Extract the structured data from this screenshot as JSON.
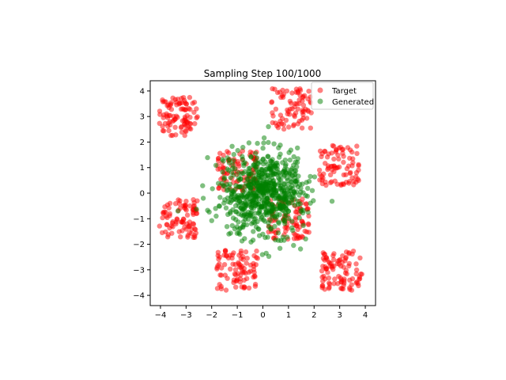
{
  "chart_data": {
    "type": "scatter",
    "title": "Sampling Step 100/1000",
    "xlabel": "",
    "ylabel": "",
    "xlim": [
      -4.4,
      4.4
    ],
    "ylim": [
      -4.4,
      4.4
    ],
    "xticks": [
      -4,
      -3,
      -2,
      -1,
      0,
      1,
      2,
      3,
      4
    ],
    "yticks": [
      -4,
      -3,
      -2,
      -1,
      0,
      1,
      2,
      3,
      4
    ],
    "grid": false,
    "legend": {
      "placement": "upper-right"
    },
    "series": [
      {
        "name": "Target",
        "color": "#ff0000",
        "alpha": 0.5,
        "clusters": [
          {
            "cx": -3.3,
            "cy": 3.0,
            "spread": 0.75,
            "count": 95
          },
          {
            "cx": 1.1,
            "cy": 3.3,
            "spread": 0.8,
            "count": 80
          },
          {
            "cx": 3.0,
            "cy": 1.1,
            "spread": 0.8,
            "count": 85
          },
          {
            "cx": -3.3,
            "cy": -1.0,
            "spread": 0.75,
            "count": 90
          },
          {
            "cx": 3.1,
            "cy": -3.0,
            "spread": 0.8,
            "count": 95
          },
          {
            "cx": -1.0,
            "cy": -3.0,
            "spread": 0.8,
            "count": 90
          },
          {
            "cx": -1.0,
            "cy": 0.9,
            "spread": 0.8,
            "count": 90
          },
          {
            "cx": 1.0,
            "cy": -1.0,
            "spread": 0.8,
            "count": 90
          }
        ]
      },
      {
        "name": "Generated",
        "color": "#008000",
        "alpha": 0.5,
        "clusters": [
          {
            "cx": 0.0,
            "cy": 0.0,
            "spread": 1.1,
            "count": 700
          }
        ]
      }
    ]
  }
}
